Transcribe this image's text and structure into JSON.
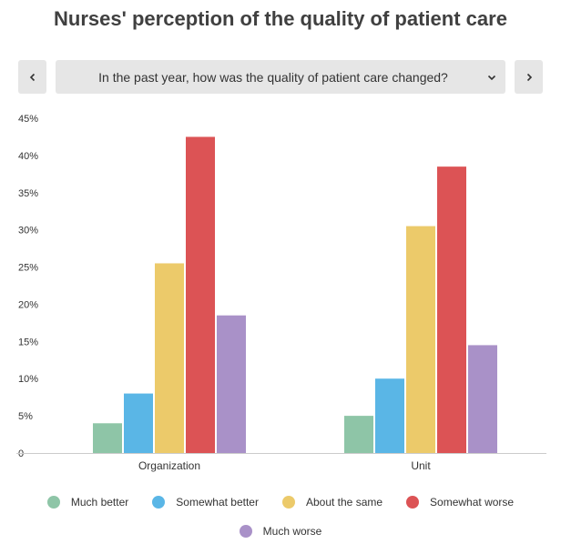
{
  "header": {
    "title": "Nurses' perception of the quality of patient care",
    "question": "In the past year, how was the quality of patient care changed?",
    "prev_icon": "chevron-left-icon",
    "next_icon": "chevron-right-icon",
    "dropdown_icon": "chevron-down-icon"
  },
  "chart_data": {
    "type": "bar",
    "title": "Nurses' perception of the quality of patient care",
    "xlabel": "",
    "ylabel": "",
    "ylim": [
      0,
      45
    ],
    "yticks": [
      0,
      5,
      10,
      15,
      20,
      25,
      30,
      35,
      40,
      45
    ],
    "ytick_labels": [
      "0",
      "5%",
      "10%",
      "15%",
      "20%",
      "25%",
      "30%",
      "35%",
      "40%",
      "45%"
    ],
    "categories": [
      "Organization",
      "Unit"
    ],
    "series": [
      {
        "name": "Much better",
        "color": "#8ec5a7",
        "values": [
          4,
          5
        ]
      },
      {
        "name": "Somewhat better",
        "color": "#5ab6e6",
        "values": [
          8,
          10
        ]
      },
      {
        "name": "About the same",
        "color": "#ecca6a",
        "values": [
          25.5,
          30.5
        ]
      },
      {
        "name": "Somewhat worse",
        "color": "#dc5355",
        "values": [
          42.5,
          38.5
        ]
      },
      {
        "name": "Much worse",
        "color": "#a991c8",
        "values": [
          18.5,
          14.5
        ]
      }
    ],
    "legend_position": "bottom",
    "grid": false
  }
}
